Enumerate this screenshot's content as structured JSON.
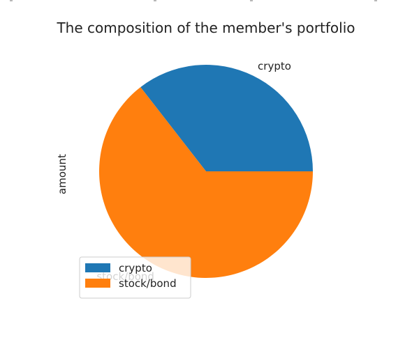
{
  "chart_data": {
    "type": "pie",
    "title": "The composition of the member's portfolio",
    "ylabel": "amount",
    "slices": [
      {
        "label": "crypto",
        "value": 0.355,
        "color": "#1f77b4"
      },
      {
        "label": "stock/bond",
        "value": 0.645,
        "color": "#ff7f0e"
      }
    ],
    "legend": {
      "placement": "lower-left",
      "entries": [
        "crypto",
        "stock/bond"
      ]
    }
  }
}
